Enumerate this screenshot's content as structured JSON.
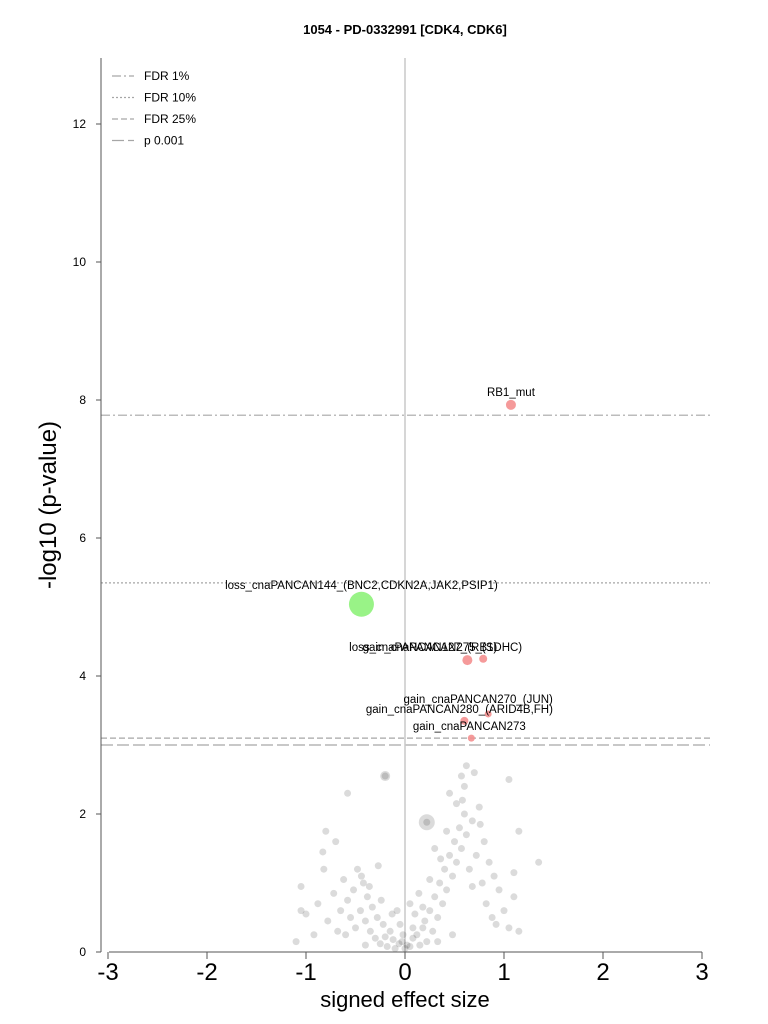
{
  "chart_data": {
    "type": "scatter",
    "title": "1054 - PD-0332991 [CDK4, CDK6]",
    "xlabel": "signed effect size",
    "ylabel": "-log10 (p-value)",
    "xlim": [
      -3,
      3
    ],
    "ylim": [
      0,
      12.9
    ],
    "x_ticks": [
      "-3",
      "-2",
      "-1",
      "0",
      "1",
      "2",
      "3"
    ],
    "y_ticks": [
      "0",
      "2",
      "4",
      "6",
      "8",
      "10",
      "12"
    ],
    "grid": false,
    "legend_position": "top-left",
    "thresholds": [
      {
        "name": "FDR 1%",
        "y": 7.78,
        "style": "dashdot"
      },
      {
        "name": "FDR 10%",
        "y": 5.35,
        "style": "dotted"
      },
      {
        "name": "FDR 25%",
        "y": 3.1,
        "style": "dashed"
      },
      {
        "name": "p 0.001",
        "y": 3.0,
        "style": "longdash"
      }
    ],
    "colors": {
      "significant_positive": "#f48f8f",
      "significant_negative": "#8ef27a",
      "background": "#000000",
      "threshold": "#a6a6a6"
    },
    "labeled_points": [
      {
        "label": "RB1_mut",
        "x": 1.07,
        "y": 7.93,
        "size": 9,
        "direction": "positive"
      },
      {
        "label": "loss_cnaPANCAN144_(BNC2,CDKN2A,JAK2,PSIP1)",
        "x": -0.44,
        "y": 5.04,
        "size": 24,
        "direction": "negative"
      },
      {
        "label": "gain_cnaPANCAN275_(SDHC)",
        "x": 0.63,
        "y": 4.23,
        "size": 9,
        "direction": "positive"
      },
      {
        "label": "loss_cnaPANCAN127_(RB1)",
        "x": 0.79,
        "y": 4.25,
        "size": 7,
        "direction": "positive"
      },
      {
        "label": "gain_cnaPANCAN270_(JUN)",
        "x": 0.84,
        "y": 3.45,
        "size": 6,
        "direction": "positive"
      },
      {
        "label": "gain_cnaPANCAN280_(ARID4B,FH)",
        "x": 0.6,
        "y": 3.35,
        "size": 7,
        "direction": "positive"
      },
      {
        "label": "gain_cnaPANCAN273",
        "x": 0.67,
        "y": 3.1,
        "size": 6,
        "direction": "positive"
      }
    ],
    "background_points": [
      {
        "x": 0.0,
        "y": 0.05
      },
      {
        "x": 0.02,
        "y": 0.1
      },
      {
        "x": -0.03,
        "y": 0.15
      },
      {
        "x": 0.05,
        "y": 0.08
      },
      {
        "x": -0.06,
        "y": 0.12
      },
      {
        "x": 0.08,
        "y": 0.2
      },
      {
        "x": -0.1,
        "y": 0.05
      },
      {
        "x": 0.12,
        "y": 0.25
      },
      {
        "x": -0.12,
        "y": 0.18
      },
      {
        "x": 0.15,
        "y": 0.1
      },
      {
        "x": -0.15,
        "y": 0.3
      },
      {
        "x": 0.18,
        "y": 0.35
      },
      {
        "x": -0.18,
        "y": 0.08
      },
      {
        "x": 0.2,
        "y": 0.45
      },
      {
        "x": -0.2,
        "y": 0.22
      },
      {
        "x": 0.22,
        "y": 0.15
      },
      {
        "x": -0.22,
        "y": 0.4
      },
      {
        "x": 0.25,
        "y": 0.6
      },
      {
        "x": -0.25,
        "y": 0.12
      },
      {
        "x": 0.28,
        "y": 0.3
      },
      {
        "x": -0.28,
        "y": 0.5
      },
      {
        "x": 0.3,
        "y": 0.8
      },
      {
        "x": -0.3,
        "y": 0.2
      },
      {
        "x": 0.33,
        "y": 0.5
      },
      {
        "x": -0.33,
        "y": 0.65
      },
      {
        "x": 0.35,
        "y": 1.0
      },
      {
        "x": -0.35,
        "y": 0.3
      },
      {
        "x": 0.38,
        "y": 0.7
      },
      {
        "x": -0.38,
        "y": 0.8
      },
      {
        "x": 0.4,
        "y": 1.2
      },
      {
        "x": -0.4,
        "y": 0.45
      },
      {
        "x": 0.42,
        "y": 0.9
      },
      {
        "x": -0.42,
        "y": 1.0
      },
      {
        "x": 0.45,
        "y": 1.4
      },
      {
        "x": -0.45,
        "y": 0.6
      },
      {
        "x": 0.48,
        "y": 1.1
      },
      {
        "x": -0.48,
        "y": 1.2
      },
      {
        "x": 0.5,
        "y": 1.6
      },
      {
        "x": -0.5,
        "y": 0.35
      },
      {
        "x": 0.52,
        "y": 1.3
      },
      {
        "x": -0.52,
        "y": 0.9
      },
      {
        "x": 0.55,
        "y": 1.8
      },
      {
        "x": -0.55,
        "y": 0.5
      },
      {
        "x": 0.57,
        "y": 1.5
      },
      {
        "x": -0.58,
        "y": 0.75
      },
      {
        "x": 0.6,
        "y": 2.0
      },
      {
        "x": -0.6,
        "y": 0.25
      },
      {
        "x": 0.62,
        "y": 1.7
      },
      {
        "x": -0.62,
        "y": 1.05
      },
      {
        "x": 0.6,
        "y": 2.4
      },
      {
        "x": 0.62,
        "y": 2.7
      },
      {
        "x": 0.58,
        "y": 2.2
      },
      {
        "x": 0.65,
        "y": 1.2
      },
      {
        "x": -0.65,
        "y": 0.6
      },
      {
        "x": 0.68,
        "y": 1.9
      },
      {
        "x": -0.68,
        "y": 0.3
      },
      {
        "x": 0.7,
        "y": 2.6
      },
      {
        "x": 0.72,
        "y": 1.4
      },
      {
        "x": -0.72,
        "y": 0.85
      },
      {
        "x": 0.75,
        "y": 2.1
      },
      {
        "x": 0.78,
        "y": 1.0
      },
      {
        "x": -0.78,
        "y": 0.45
      },
      {
        "x": 0.8,
        "y": 1.6
      },
      {
        "x": 0.82,
        "y": 0.7
      },
      {
        "x": -0.82,
        "y": 1.2
      },
      {
        "x": 0.85,
        "y": 1.3
      },
      {
        "x": 0.88,
        "y": 0.5
      },
      {
        "x": -0.88,
        "y": 0.7
      },
      {
        "x": 0.9,
        "y": 1.1
      },
      {
        "x": 0.92,
        "y": 0.4
      },
      {
        "x": -0.92,
        "y": 0.25
      },
      {
        "x": 0.95,
        "y": 0.9
      },
      {
        "x": 1.0,
        "y": 0.6
      },
      {
        "x": -1.0,
        "y": 0.55
      },
      {
        "x": 1.05,
        "y": 0.35
      },
      {
        "x": 1.1,
        "y": 0.8
      },
      {
        "x": 1.15,
        "y": 0.3
      },
      {
        "x": 1.05,
        "y": 2.5
      },
      {
        "x": 1.15,
        "y": 1.75
      },
      {
        "x": 1.35,
        "y": 1.3
      },
      {
        "x": -1.05,
        "y": 0.95
      },
      {
        "x": -1.1,
        "y": 0.15
      },
      {
        "x": -0.8,
        "y": 1.75
      },
      {
        "x": -0.58,
        "y": 2.3
      },
      {
        "x": -0.83,
        "y": 1.45
      },
      {
        "x": -1.05,
        "y": 0.6
      },
      {
        "x": -0.2,
        "y": 2.55
      },
      {
        "x": 0.22,
        "y": 1.88
      },
      {
        "x": 0.1,
        "y": 0.55
      },
      {
        "x": -0.05,
        "y": 0.4
      },
      {
        "x": 0.05,
        "y": 0.7
      },
      {
        "x": -0.08,
        "y": 0.6
      },
      {
        "x": 0.14,
        "y": 0.85
      },
      {
        "x": 0.3,
        "y": 1.5
      },
      {
        "x": 0.45,
        "y": 2.3
      },
      {
        "x": 0.52,
        "y": 2.15
      },
      {
        "x": 0.57,
        "y": 2.55
      },
      {
        "x": 0.42,
        "y": 1.75
      },
      {
        "x": 0.36,
        "y": 1.35
      },
      {
        "x": 0.25,
        "y": 1.05
      },
      {
        "x": 0.18,
        "y": 0.65
      },
      {
        "x": 0.08,
        "y": 0.35
      },
      {
        "x": -0.02,
        "y": 0.25
      },
      {
        "x": -0.13,
        "y": 0.55
      },
      {
        "x": -0.24,
        "y": 0.75
      },
      {
        "x": -0.36,
        "y": 0.95
      },
      {
        "x": -0.44,
        "y": 1.1
      },
      {
        "x": -0.27,
        "y": 1.25
      },
      {
        "x": 0.68,
        "y": 0.95
      },
      {
        "x": 0.76,
        "y": 1.85
      },
      {
        "x": 1.1,
        "y": 1.15
      },
      {
        "x": -0.7,
        "y": 1.6
      },
      {
        "x": 0.48,
        "y": 0.25
      },
      {
        "x": -0.4,
        "y": 0.1
      },
      {
        "x": 0.33,
        "y": 0.15
      }
    ]
  }
}
